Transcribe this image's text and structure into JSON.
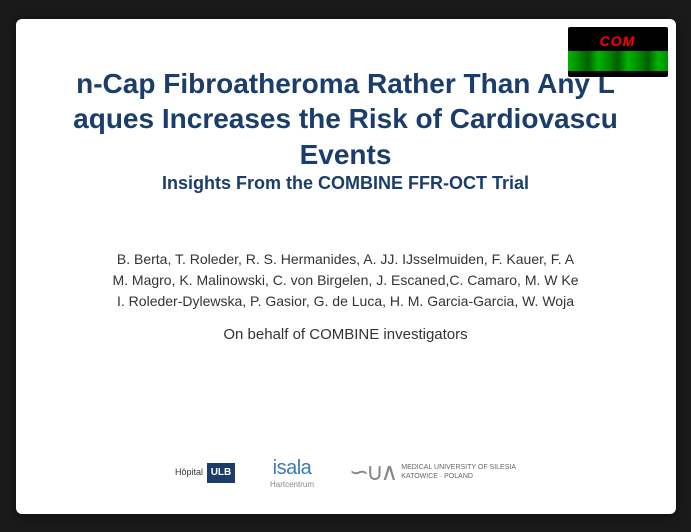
{
  "badge": {
    "label": "COM"
  },
  "title": {
    "line1": "n-Cap Fibroatheroma Rather Than Any L",
    "line2": "aques Increases the Risk of Cardiovascu",
    "line3": "Events",
    "subtitle": "Insights From the COMBINE FFR-OCT Trial"
  },
  "authors": {
    "line1": "B. Berta, T. Roleder, R. S. Hermanides, A. JJ. IJsselmuiden, F. Kauer, F. A",
    "line2": "M. Magro, K. Malinowski, C. von Birgelen, J. Escaned,C. Camaro, M. W Ke",
    "line3": "I. Roleder-Dylewska, P. Gasior, G. de Luca, H. M. Garcia-Garcia, W. Woja",
    "behalf": "On behalf of  COMBINE investigators"
  },
  "logos": {
    "hospital": {
      "text": "Hôpital",
      "box": "ULB"
    },
    "isala": {
      "main": "isala",
      "sub": "Hartcentrum"
    },
    "medical": {
      "symbol": "∽∪∧",
      "text_line1": "MEDICAL UNIVERSITY OF SILESIA",
      "text_line2": "KATOWICE · POLAND"
    }
  },
  "styling": {
    "slide_bg": "#ffffff",
    "body_bg": "#1a1a1a",
    "title_color": "#1a3d6b",
    "author_color": "#333333",
    "badge_bg": "#000000",
    "badge_text_color": "#ff0000",
    "title_fontsize": 28,
    "subtitle_fontsize": 18,
    "author_fontsize": 14,
    "slide_width": 660,
    "slide_height": 495
  }
}
